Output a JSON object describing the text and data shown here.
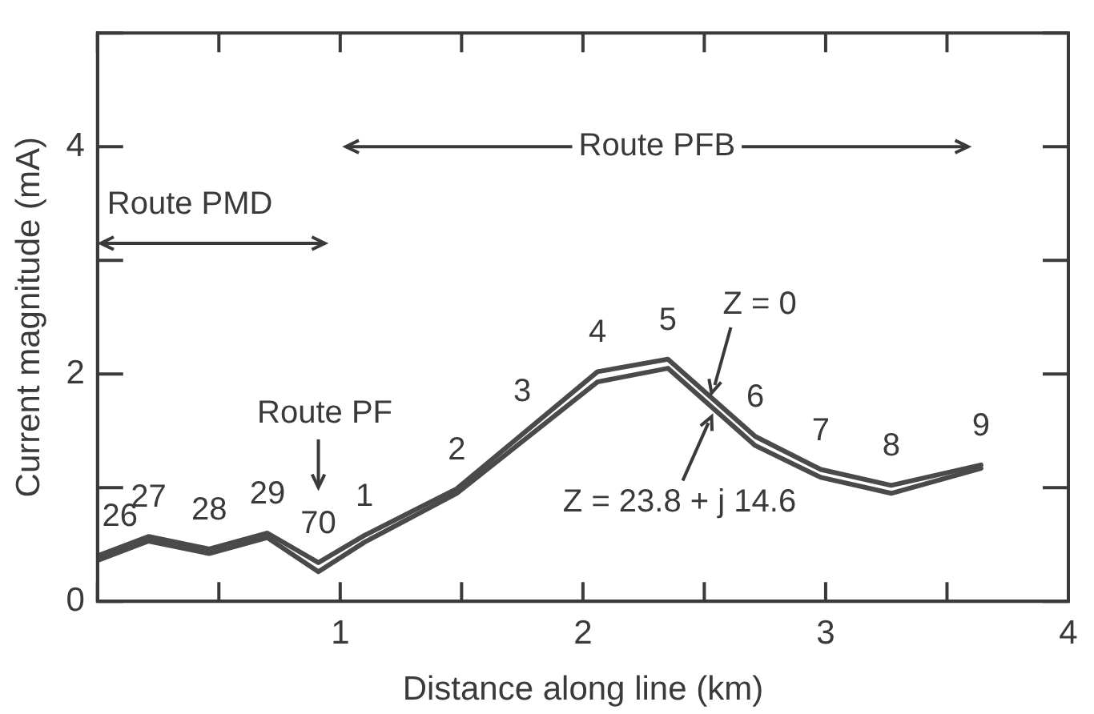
{
  "chart_data": {
    "type": "line",
    "xlabel": "Distance along line (km)",
    "ylabel": "Current magnitude (mA)",
    "x": [
      0,
      0.21,
      0.46,
      0.7,
      0.91,
      1.1,
      1.48,
      2.06,
      2.35,
      2.71,
      2.98,
      3.27,
      3.64
    ],
    "series": [
      {
        "name": "Z = 0",
        "color": "#4a4a4a",
        "values": [
          0.4,
          0.57,
          0.46,
          0.6,
          0.34,
          0.58,
          0.99,
          2.02,
          2.13,
          1.45,
          1.16,
          1.02,
          1.2
        ]
      },
      {
        "name": "Z = 23.8 + j 14.6",
        "color": "#4a4a4a",
        "values": [
          0.36,
          0.53,
          0.42,
          0.56,
          0.26,
          0.52,
          0.95,
          1.93,
          2.05,
          1.37,
          1.09,
          0.95,
          1.17
        ]
      }
    ],
    "xlim": [
      0,
      4
    ],
    "ylim": [
      0,
      5
    ],
    "xticks": [
      {
        "value": 0,
        "label": null
      },
      {
        "value": 0.5,
        "label": null
      },
      1,
      {
        "value": 1.5,
        "label": null
      },
      2,
      {
        "value": 2.5,
        "label": null
      },
      3,
      {
        "value": 3.5,
        "label": null
      },
      4
    ],
    "yticks": [
      0,
      {
        "value": 1,
        "label": null
      },
      2,
      {
        "value": 3,
        "label": null
      },
      4,
      {
        "value": 5,
        "label": null
      }
    ],
    "annotations": [
      "Route PMD",
      "Route PFB",
      "Route PF",
      {
        "text": "26",
        "x": 0,
        "y": 0.4
      },
      {
        "text": "27",
        "x": 0.21,
        "y": 0.57
      },
      {
        "text": "28",
        "x": 0.46,
        "y": 0.46
      },
      {
        "text": "29",
        "x": 0.7,
        "y": 0.6
      },
      {
        "text": "70",
        "x": 0.91,
        "y": 0.34
      },
      {
        "text": "1",
        "x": 1.1,
        "y": 0.58
      },
      {
        "text": "2",
        "x": 1.48,
        "y": 0.99
      },
      {
        "text": "3",
        "x": 1.75,
        "y": 1.5
      },
      {
        "text": "4",
        "x": 2.06,
        "y": 2.02
      },
      {
        "text": "5",
        "x": 2.35,
        "y": 2.13
      },
      {
        "text": "6",
        "x": 2.71,
        "y": 1.45
      },
      {
        "text": "7",
        "x": 2.98,
        "y": 1.16
      },
      {
        "text": "8",
        "x": 3.27,
        "y": 1.02
      },
      {
        "text": "9",
        "x": 3.64,
        "y": 1.2
      }
    ],
    "grid": false,
    "legend": "right",
    "marker": "none",
    "line_style": "solid"
  }
}
